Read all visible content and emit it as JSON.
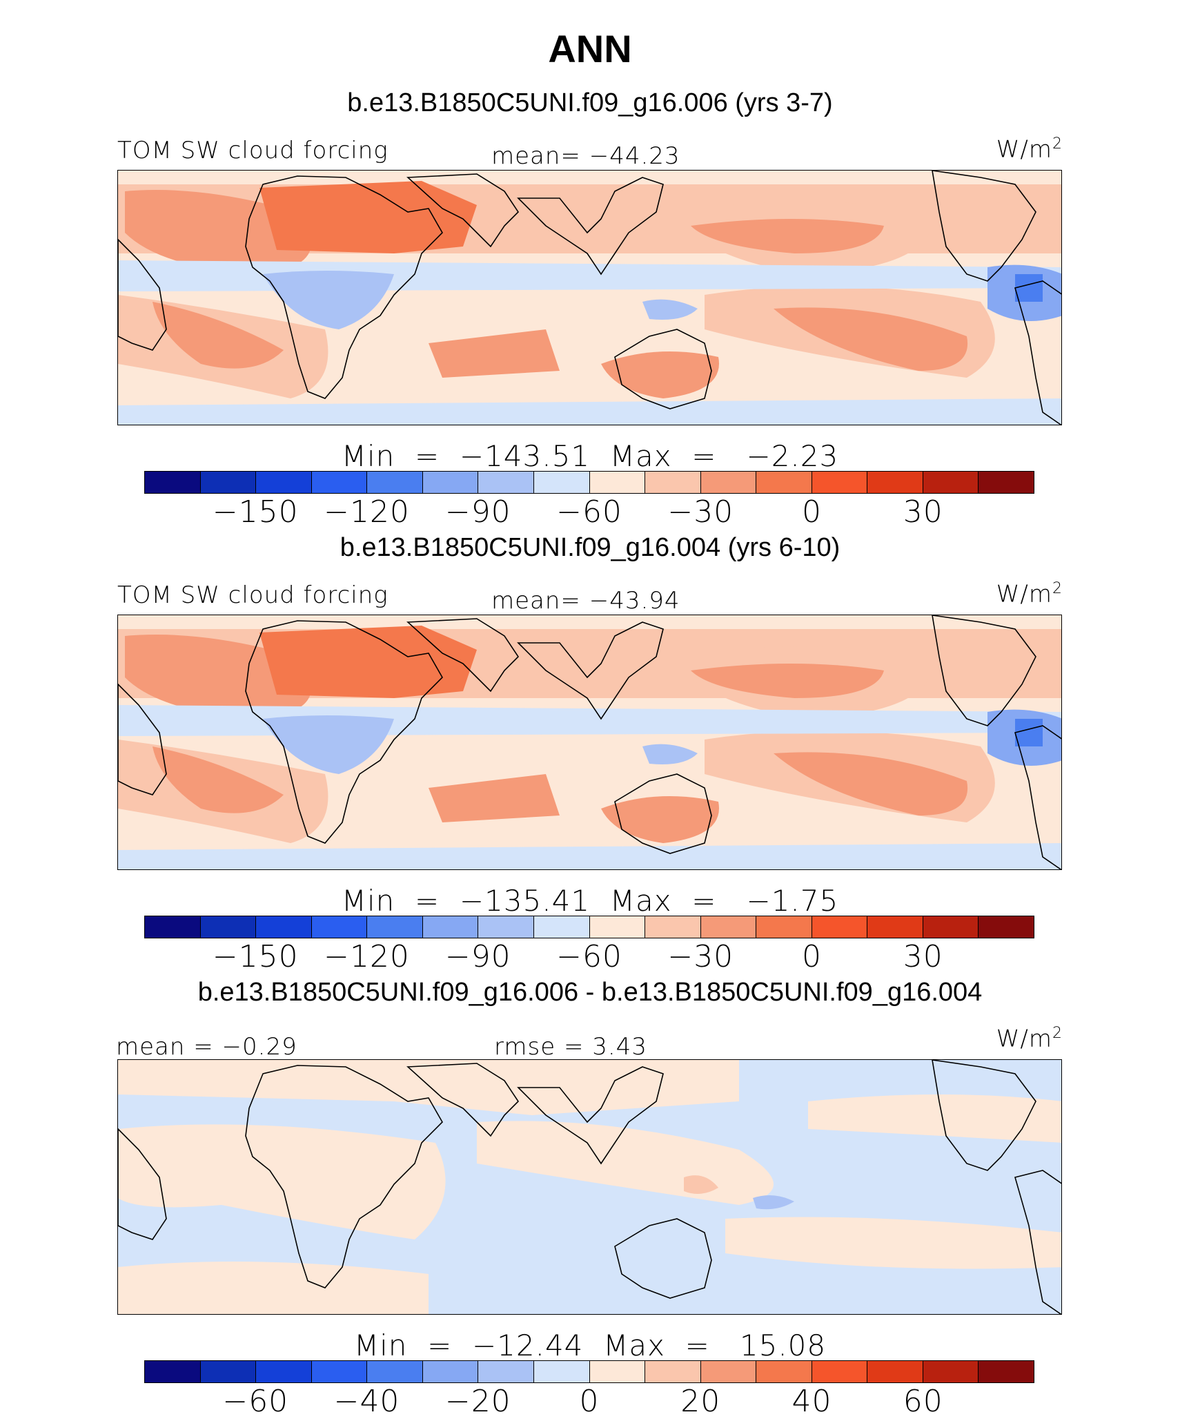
{
  "title": "ANN",
  "panels": [
    {
      "subtitle": "b.e13.B1850C5UNI.f09_g16.006 (yrs 3-7)",
      "left_label": "TOM SW cloud forcing",
      "mid_label": "mean= −44.23",
      "units": "W/m",
      "units_sup": "2",
      "minmax": "Min  =  −143.51  Max  =   −2.23",
      "ticks": [
        "−150",
        "−120",
        "−90",
        "−60",
        "−30",
        "0",
        "30"
      ],
      "scheme": "abs"
    },
    {
      "subtitle": "b.e13.B1850C5UNI.f09_g16.004 (yrs 6-10)",
      "left_label": "TOM SW cloud forcing",
      "mid_label": "mean= −43.94",
      "units": "W/m",
      "units_sup": "2",
      "minmax": "Min  =  −135.41  Max  =   −1.75",
      "ticks": [
        "−150",
        "−120",
        "−90",
        "−60",
        "−30",
        "0",
        "30"
      ],
      "scheme": "abs"
    },
    {
      "subtitle": "b.e13.B1850C5UNI.f09_g16.006 - b.e13.B1850C5UNI.f09_g16.004",
      "left_label": "mean  =   −0.29",
      "mid_label": "rmse  =    3.43",
      "units": "W/m",
      "units_sup": "2",
      "minmax": "Min  =  −12.44  Max  =   15.08",
      "ticks": [
        "−60",
        "−40",
        "−20",
        "0",
        "20",
        "40",
        "60"
      ],
      "scheme": "diff"
    }
  ],
  "colorbar": [
    "#0a0a7f",
    "#0d2fb5",
    "#1440d8",
    "#2a5ef0",
    "#4a7ef0",
    "#86a8f3",
    "#aac2f5",
    "#d4e4fa",
    "#fde8d8",
    "#fac6ad",
    "#f59a78",
    "#f4784c",
    "#f5552b",
    "#e03a17",
    "#b8210f",
    "#850c0c"
  ]
}
